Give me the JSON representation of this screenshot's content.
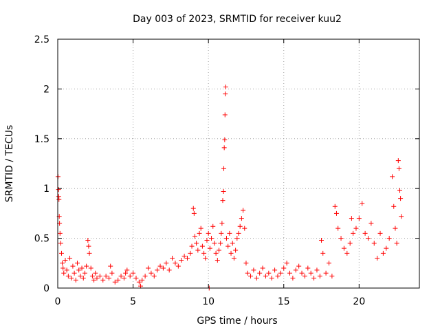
{
  "chart_data": {
    "type": "scatter",
    "title": "Day 003 of 2023, SRMTID for receiver kuu2",
    "xlabel": "GPS time / hours",
    "ylabel": "SRMTID / TECUs",
    "xlim": [
      0,
      24
    ],
    "ylim": [
      0,
      2.5
    ],
    "x_ticks": [
      0,
      5,
      10,
      15,
      20
    ],
    "x_tick_labels": [
      "0",
      "5",
      "10",
      "15",
      "20"
    ],
    "y_ticks": [
      0,
      0.5,
      1,
      1.5,
      2,
      2.5
    ],
    "y_tick_labels": [
      "0",
      "0.5",
      "1",
      "1.5",
      "2",
      "2.5"
    ],
    "grid": true,
    "marker": "+",
    "series": [
      {
        "name": "SRMTID",
        "color": "#ff0000",
        "points": [
          [
            0.02,
            1.12
          ],
          [
            0.05,
            0.99
          ],
          [
            0.06,
            0.92
          ],
          [
            0.08,
            0.89
          ],
          [
            0.1,
            0.72
          ],
          [
            0.12,
            0.65
          ],
          [
            0.15,
            0.55
          ],
          [
            0.2,
            0.45
          ],
          [
            0.25,
            0.35
          ],
          [
            0.3,
            0.25
          ],
          [
            0.35,
            0.2
          ],
          [
            0.4,
            0.15
          ],
          [
            0.5,
            0.28
          ],
          [
            0.6,
            0.18
          ],
          [
            0.7,
            0.12
          ],
          [
            0.8,
            0.3
          ],
          [
            0.9,
            0.1
          ],
          [
            1.0,
            0.22
          ],
          [
            1.1,
            0.15
          ],
          [
            1.2,
            0.08
          ],
          [
            1.3,
            0.25
          ],
          [
            1.4,
            0.18
          ],
          [
            1.5,
            0.12
          ],
          [
            1.6,
            0.2
          ],
          [
            1.7,
            0.1
          ],
          [
            1.8,
            0.15
          ],
          [
            1.9,
            0.22
          ],
          [
            2.0,
            0.48
          ],
          [
            2.05,
            0.42
          ],
          [
            2.1,
            0.35
          ],
          [
            2.2,
            0.2
          ],
          [
            2.3,
            0.12
          ],
          [
            2.4,
            0.08
          ],
          [
            2.5,
            0.15
          ],
          [
            2.6,
            0.1
          ],
          [
            2.8,
            0.12
          ],
          [
            3.0,
            0.08
          ],
          [
            3.2,
            0.12
          ],
          [
            3.4,
            0.1
          ],
          [
            3.5,
            0.22
          ],
          [
            3.6,
            0.15
          ],
          [
            3.8,
            0.06
          ],
          [
            4.0,
            0.08
          ],
          [
            4.2,
            0.12
          ],
          [
            4.4,
            0.1
          ],
          [
            4.5,
            0.15
          ],
          [
            4.6,
            0.18
          ],
          [
            4.8,
            0.12
          ],
          [
            5.0,
            0.15
          ],
          [
            5.2,
            0.1
          ],
          [
            5.4,
            0.06
          ],
          [
            5.5,
            0.02
          ],
          [
            5.6,
            0.08
          ],
          [
            5.8,
            0.12
          ],
          [
            6.0,
            0.2
          ],
          [
            6.2,
            0.15
          ],
          [
            6.4,
            0.12
          ],
          [
            6.6,
            0.18
          ],
          [
            6.8,
            0.22
          ],
          [
            7.0,
            0.2
          ],
          [
            7.2,
            0.25
          ],
          [
            7.4,
            0.18
          ],
          [
            7.6,
            0.3
          ],
          [
            7.8,
            0.25
          ],
          [
            8.0,
            0.22
          ],
          [
            8.2,
            0.28
          ],
          [
            8.4,
            0.32
          ],
          [
            8.6,
            0.3
          ],
          [
            8.8,
            0.35
          ],
          [
            8.9,
            0.42
          ],
          [
            9.0,
            0.8
          ],
          [
            9.05,
            0.75
          ],
          [
            9.1,
            0.52
          ],
          [
            9.2,
            0.45
          ],
          [
            9.3,
            0.38
          ],
          [
            9.4,
            0.55
          ],
          [
            9.5,
            0.6
          ],
          [
            9.6,
            0.42
          ],
          [
            9.7,
            0.35
          ],
          [
            9.8,
            0.3
          ],
          [
            9.9,
            0.48
          ],
          [
            10.0,
            0.55
          ],
          [
            10.05,
            0.0
          ],
          [
            10.1,
            0.4
          ],
          [
            10.2,
            0.5
          ],
          [
            10.3,
            0.62
          ],
          [
            10.4,
            0.45
          ],
          [
            10.5,
            0.35
          ],
          [
            10.6,
            0.28
          ],
          [
            10.7,
            0.38
          ],
          [
            10.8,
            0.45
          ],
          [
            10.85,
            0.55
          ],
          [
            10.9,
            0.65
          ],
          [
            10.95,
            0.88
          ],
          [
            11.0,
            0.97
          ],
          [
            11.02,
            1.2
          ],
          [
            11.05,
            1.41
          ],
          [
            11.08,
            1.49
          ],
          [
            11.1,
            1.74
          ],
          [
            11.12,
            1.95
          ],
          [
            11.15,
            2.02
          ],
          [
            11.2,
            0.5
          ],
          [
            11.3,
            0.42
          ],
          [
            11.4,
            0.55
          ],
          [
            11.5,
            0.35
          ],
          [
            11.6,
            0.45
          ],
          [
            11.7,
            0.3
          ],
          [
            11.8,
            0.38
          ],
          [
            11.9,
            0.5
          ],
          [
            12.0,
            0.55
          ],
          [
            12.1,
            0.62
          ],
          [
            12.2,
            0.7
          ],
          [
            12.3,
            0.78
          ],
          [
            12.4,
            0.6
          ],
          [
            12.5,
            0.25
          ],
          [
            12.6,
            0.15
          ],
          [
            12.8,
            0.12
          ],
          [
            13.0,
            0.18
          ],
          [
            13.2,
            0.1
          ],
          [
            13.4,
            0.15
          ],
          [
            13.6,
            0.2
          ],
          [
            13.8,
            0.12
          ],
          [
            14.0,
            0.15
          ],
          [
            14.2,
            0.1
          ],
          [
            14.4,
            0.18
          ],
          [
            14.6,
            0.12
          ],
          [
            14.8,
            0.15
          ],
          [
            15.0,
            0.2
          ],
          [
            15.2,
            0.25
          ],
          [
            15.4,
            0.15
          ],
          [
            15.6,
            0.1
          ],
          [
            15.8,
            0.18
          ],
          [
            16.0,
            0.22
          ],
          [
            16.2,
            0.15
          ],
          [
            16.4,
            0.12
          ],
          [
            16.6,
            0.2
          ],
          [
            16.8,
            0.15
          ],
          [
            17.0,
            0.1
          ],
          [
            17.2,
            0.18
          ],
          [
            17.4,
            0.12
          ],
          [
            17.5,
            0.48
          ],
          [
            17.6,
            0.35
          ],
          [
            17.8,
            0.15
          ],
          [
            18.0,
            0.25
          ],
          [
            18.2,
            0.12
          ],
          [
            18.4,
            0.82
          ],
          [
            18.5,
            0.75
          ],
          [
            18.6,
            0.6
          ],
          [
            18.8,
            0.5
          ],
          [
            19.0,
            0.4
          ],
          [
            19.2,
            0.35
          ],
          [
            19.4,
            0.45
          ],
          [
            19.5,
            0.7
          ],
          [
            19.6,
            0.55
          ],
          [
            19.8,
            0.6
          ],
          [
            20.0,
            0.7
          ],
          [
            20.2,
            0.85
          ],
          [
            20.4,
            0.55
          ],
          [
            20.6,
            0.5
          ],
          [
            20.8,
            0.65
          ],
          [
            21.0,
            0.45
          ],
          [
            21.2,
            0.3
          ],
          [
            21.4,
            0.55
          ],
          [
            21.6,
            0.35
          ],
          [
            21.8,
            0.4
          ],
          [
            22.0,
            0.5
          ],
          [
            22.2,
            1.12
          ],
          [
            22.3,
            0.82
          ],
          [
            22.4,
            0.6
          ],
          [
            22.5,
            0.45
          ],
          [
            22.6,
            1.28
          ],
          [
            22.65,
            1.2
          ],
          [
            22.7,
            0.98
          ],
          [
            22.75,
            0.9
          ],
          [
            22.8,
            0.72
          ]
        ]
      }
    ]
  }
}
